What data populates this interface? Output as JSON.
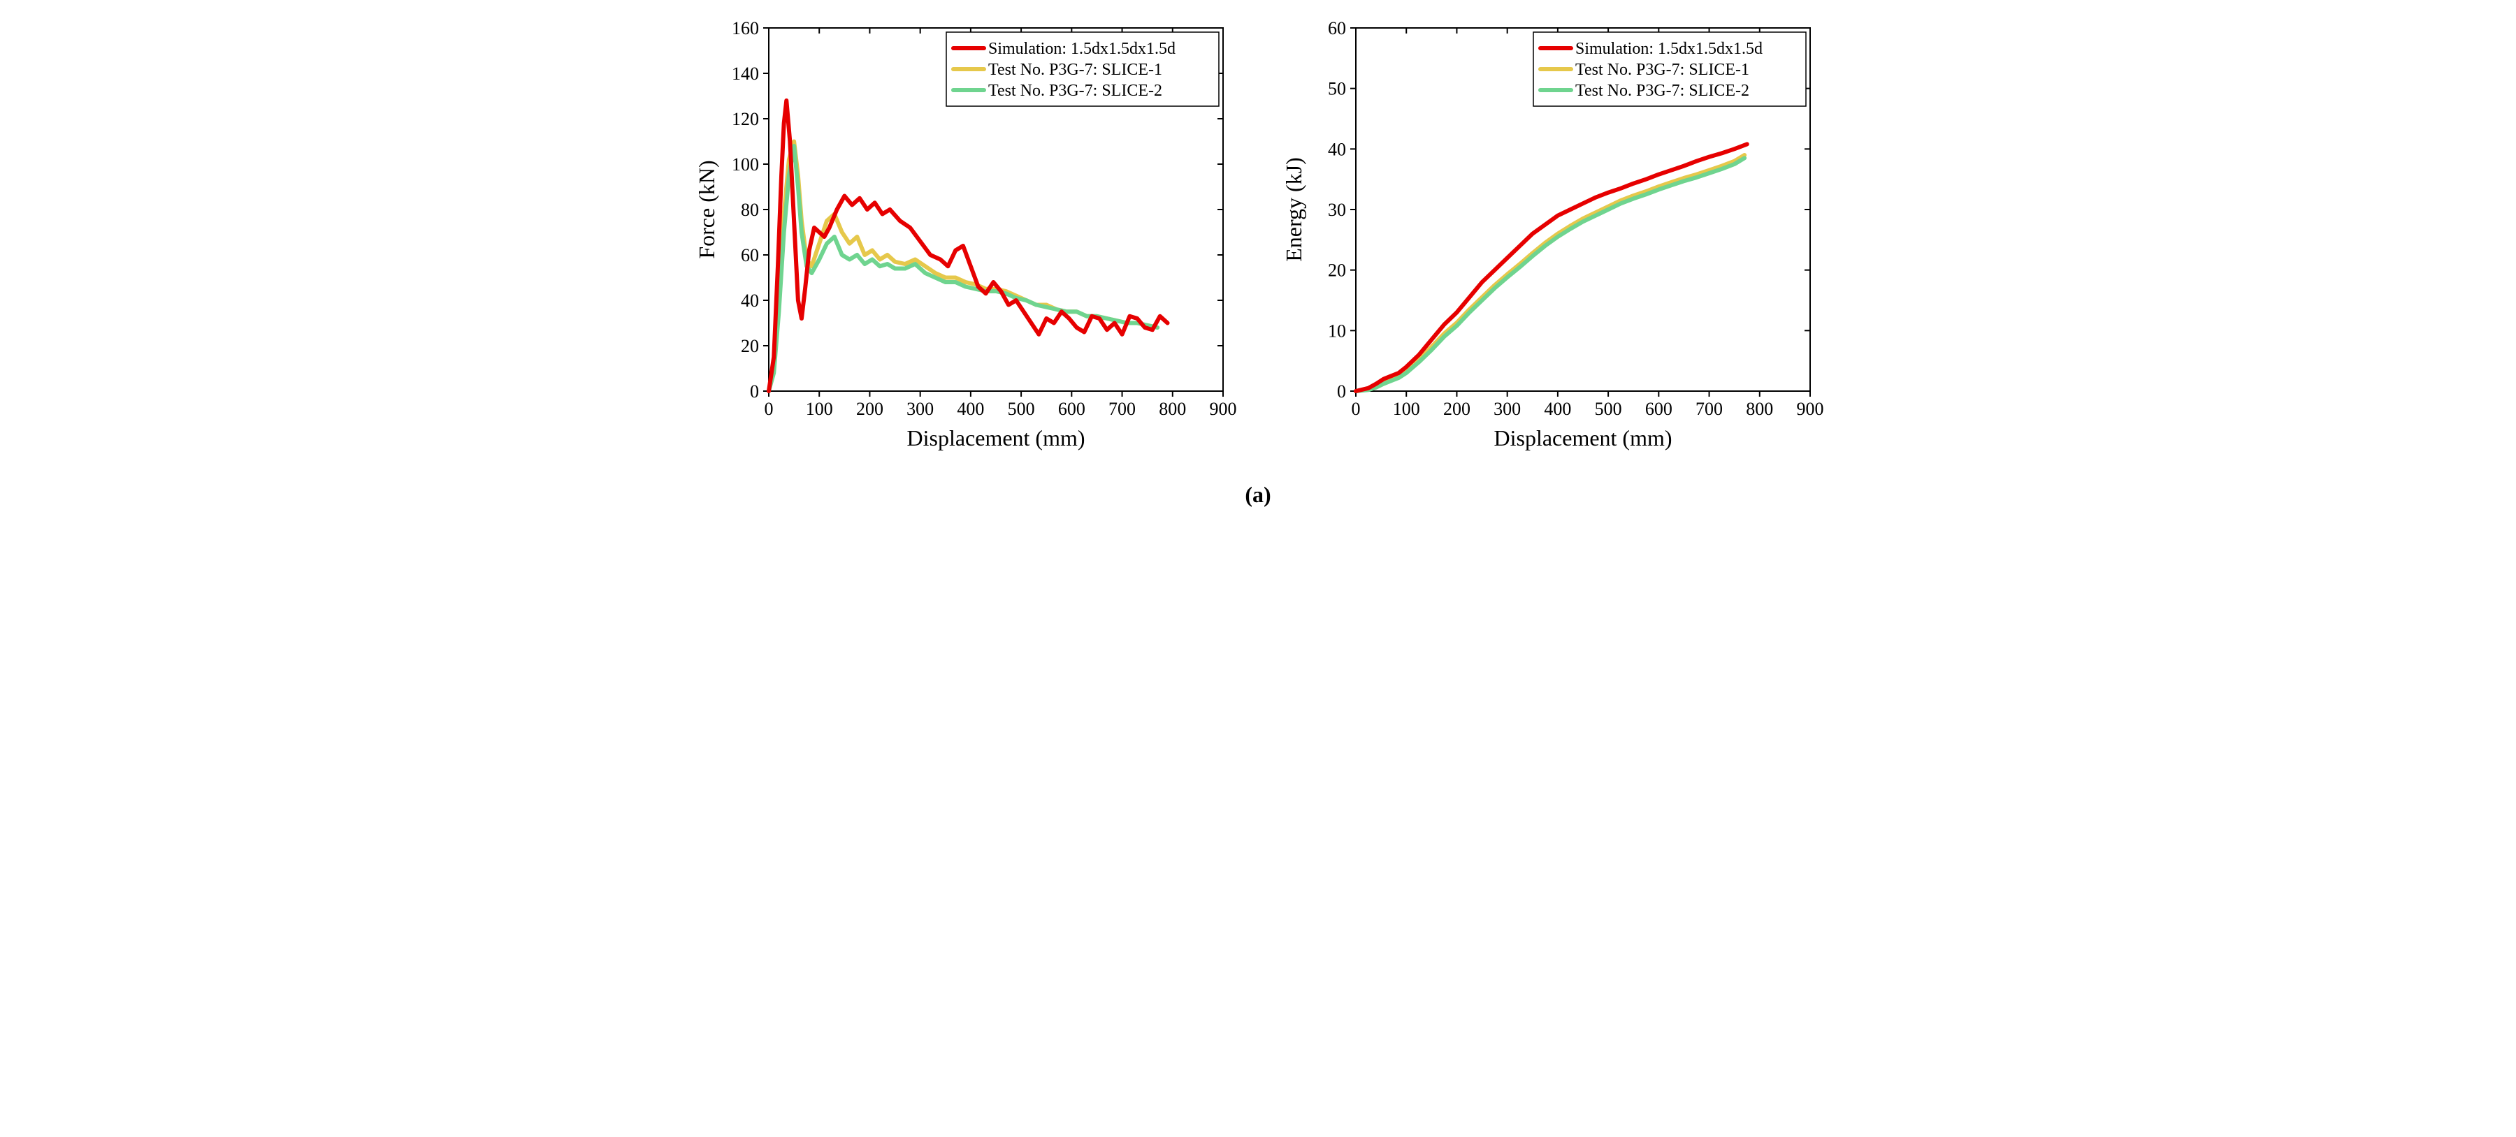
{
  "subfig_label": "(a)",
  "background_color": "#ffffff",
  "grid_color": "#000000",
  "axis_color": "#000000",
  "text_color": "#000000",
  "series_colors": {
    "simulation": "#e60000",
    "slice1": "#e6c84b",
    "slice2": "#6fd48f"
  },
  "line_width": 6,
  "legend": {
    "items": [
      {
        "key": "simulation",
        "label": "Simulation: 1.5dx1.5dx1.5d"
      },
      {
        "key": "slice1",
        "label": "Test No. P3G-7: SLICE-1"
      },
      {
        "key": "slice2",
        "label": "Test No. P3G-7: SLICE-2"
      }
    ],
    "fontsize": 24,
    "box_border": "#000000"
  },
  "force_chart": {
    "xlabel": "Displacement (mm)",
    "ylabel": "Force (kN)",
    "label_fontsize": 32,
    "tick_fontsize": 26,
    "xlim": [
      0,
      900
    ],
    "ylim": [
      0,
      160
    ],
    "xticks": [
      0,
      100,
      200,
      300,
      400,
      500,
      600,
      700,
      800,
      900
    ],
    "yticks": [
      0,
      20,
      40,
      60,
      80,
      100,
      120,
      140,
      160
    ],
    "series": {
      "simulation": [
        [
          0,
          0
        ],
        [
          10,
          15
        ],
        [
          18,
          55
        ],
        [
          25,
          95
        ],
        [
          30,
          118
        ],
        [
          35,
          128
        ],
        [
          42,
          110
        ],
        [
          50,
          75
        ],
        [
          58,
          40
        ],
        [
          65,
          32
        ],
        [
          72,
          45
        ],
        [
          80,
          62
        ],
        [
          90,
          72
        ],
        [
          100,
          70
        ],
        [
          110,
          68
        ],
        [
          120,
          72
        ],
        [
          135,
          80
        ],
        [
          150,
          86
        ],
        [
          165,
          82
        ],
        [
          180,
          85
        ],
        [
          195,
          80
        ],
        [
          210,
          83
        ],
        [
          225,
          78
        ],
        [
          240,
          80
        ],
        [
          260,
          75
        ],
        [
          280,
          72
        ],
        [
          300,
          66
        ],
        [
          320,
          60
        ],
        [
          340,
          58
        ],
        [
          355,
          55
        ],
        [
          370,
          62
        ],
        [
          385,
          64
        ],
        [
          400,
          55
        ],
        [
          415,
          46
        ],
        [
          430,
          43
        ],
        [
          445,
          48
        ],
        [
          460,
          44
        ],
        [
          475,
          38
        ],
        [
          490,
          40
        ],
        [
          505,
          35
        ],
        [
          520,
          30
        ],
        [
          535,
          25
        ],
        [
          550,
          32
        ],
        [
          565,
          30
        ],
        [
          580,
          35
        ],
        [
          595,
          32
        ],
        [
          610,
          28
        ],
        [
          625,
          26
        ],
        [
          640,
          33
        ],
        [
          655,
          32
        ],
        [
          670,
          27
        ],
        [
          685,
          30
        ],
        [
          700,
          25
        ],
        [
          715,
          33
        ],
        [
          730,
          32
        ],
        [
          745,
          28
        ],
        [
          760,
          27
        ],
        [
          775,
          33
        ],
        [
          790,
          30
        ]
      ],
      "slice1": [
        [
          0,
          0
        ],
        [
          10,
          10
        ],
        [
          20,
          40
        ],
        [
          30,
          78
        ],
        [
          40,
          102
        ],
        [
          50,
          110
        ],
        [
          58,
          95
        ],
        [
          65,
          75
        ],
        [
          75,
          58
        ],
        [
          85,
          55
        ],
        [
          100,
          65
        ],
        [
          115,
          75
        ],
        [
          130,
          78
        ],
        [
          145,
          70
        ],
        [
          160,
          65
        ],
        [
          175,
          68
        ],
        [
          190,
          60
        ],
        [
          205,
          62
        ],
        [
          220,
          58
        ],
        [
          235,
          60
        ],
        [
          250,
          57
        ],
        [
          270,
          56
        ],
        [
          290,
          58
        ],
        [
          310,
          55
        ],
        [
          330,
          52
        ],
        [
          350,
          50
        ],
        [
          370,
          50
        ],
        [
          390,
          48
        ],
        [
          410,
          47
        ],
        [
          430,
          45
        ],
        [
          450,
          45
        ],
        [
          470,
          44
        ],
        [
          490,
          42
        ],
        [
          510,
          40
        ],
        [
          530,
          38
        ],
        [
          550,
          38
        ],
        [
          570,
          36
        ],
        [
          590,
          35
        ],
        [
          610,
          35
        ],
        [
          630,
          33
        ],
        [
          650,
          33
        ],
        [
          670,
          32
        ],
        [
          690,
          31
        ],
        [
          710,
          30
        ],
        [
          730,
          30
        ],
        [
          750,
          29
        ],
        [
          770,
          28
        ]
      ],
      "slice2": [
        [
          0,
          0
        ],
        [
          10,
          8
        ],
        [
          20,
          35
        ],
        [
          30,
          70
        ],
        [
          40,
          95
        ],
        [
          50,
          108
        ],
        [
          58,
          90
        ],
        [
          65,
          70
        ],
        [
          75,
          55
        ],
        [
          85,
          52
        ],
        [
          100,
          58
        ],
        [
          115,
          65
        ],
        [
          130,
          68
        ],
        [
          145,
          60
        ],
        [
          160,
          58
        ],
        [
          175,
          60
        ],
        [
          190,
          56
        ],
        [
          205,
          58
        ],
        [
          220,
          55
        ],
        [
          235,
          56
        ],
        [
          250,
          54
        ],
        [
          270,
          54
        ],
        [
          290,
          56
        ],
        [
          310,
          52
        ],
        [
          330,
          50
        ],
        [
          350,
          48
        ],
        [
          370,
          48
        ],
        [
          390,
          46
        ],
        [
          410,
          45
        ],
        [
          430,
          44
        ],
        [
          450,
          44
        ],
        [
          470,
          43
        ],
        [
          490,
          41
        ],
        [
          510,
          40
        ],
        [
          530,
          38
        ],
        [
          550,
          37
        ],
        [
          570,
          36
        ],
        [
          590,
          35
        ],
        [
          610,
          35
        ],
        [
          630,
          33
        ],
        [
          650,
          33
        ],
        [
          670,
          32
        ],
        [
          690,
          31
        ],
        [
          710,
          30
        ],
        [
          730,
          30
        ],
        [
          750,
          29
        ],
        [
          770,
          28
        ]
      ]
    }
  },
  "energy_chart": {
    "xlabel": "Displacement (mm)",
    "ylabel": "Energy (kJ)",
    "label_fontsize": 32,
    "tick_fontsize": 26,
    "xlim": [
      0,
      900
    ],
    "ylim": [
      0,
      60
    ],
    "xticks": [
      0,
      100,
      200,
      300,
      400,
      500,
      600,
      700,
      800,
      900
    ],
    "yticks": [
      0,
      10,
      20,
      30,
      40,
      50,
      60
    ],
    "series": {
      "simulation": [
        [
          0,
          0
        ],
        [
          25,
          0.5
        ],
        [
          40,
          1.2
        ],
        [
          55,
          2
        ],
        [
          70,
          2.5
        ],
        [
          85,
          3
        ],
        [
          100,
          4
        ],
        [
          125,
          6
        ],
        [
          150,
          8.5
        ],
        [
          175,
          11
        ],
        [
          200,
          13
        ],
        [
          225,
          15.5
        ],
        [
          250,
          18
        ],
        [
          275,
          20
        ],
        [
          300,
          22
        ],
        [
          325,
          24
        ],
        [
          350,
          26
        ],
        [
          375,
          27.5
        ],
        [
          400,
          29
        ],
        [
          425,
          30
        ],
        [
          450,
          31
        ],
        [
          475,
          32
        ],
        [
          500,
          32.8
        ],
        [
          525,
          33.5
        ],
        [
          550,
          34.3
        ],
        [
          575,
          35
        ],
        [
          600,
          35.8
        ],
        [
          625,
          36.5
        ],
        [
          650,
          37.2
        ],
        [
          675,
          38
        ],
        [
          700,
          38.7
        ],
        [
          725,
          39.3
        ],
        [
          750,
          40
        ],
        [
          775,
          40.8
        ]
      ],
      "slice1": [
        [
          0,
          0
        ],
        [
          25,
          0.3
        ],
        [
          40,
          0.8
        ],
        [
          55,
          1.5
        ],
        [
          70,
          2
        ],
        [
          85,
          2.5
        ],
        [
          100,
          3.4
        ],
        [
          125,
          5.2
        ],
        [
          150,
          7.3
        ],
        [
          175,
          9.5
        ],
        [
          200,
          11.3
        ],
        [
          225,
          13.5
        ],
        [
          250,
          15.5
        ],
        [
          275,
          17.5
        ],
        [
          300,
          19.3
        ],
        [
          325,
          21
        ],
        [
          350,
          22.8
        ],
        [
          375,
          24.5
        ],
        [
          400,
          26
        ],
        [
          425,
          27.3
        ],
        [
          450,
          28.5
        ],
        [
          475,
          29.5
        ],
        [
          500,
          30.5
        ],
        [
          525,
          31.5
        ],
        [
          550,
          32.3
        ],
        [
          575,
          33
        ],
        [
          600,
          33.8
        ],
        [
          625,
          34.5
        ],
        [
          650,
          35.2
        ],
        [
          675,
          35.8
        ],
        [
          700,
          36.5
        ],
        [
          725,
          37.2
        ],
        [
          750,
          38
        ],
        [
          770,
          39
        ]
      ],
      "slice2": [
        [
          0,
          0
        ],
        [
          25,
          0.2
        ],
        [
          40,
          0.6
        ],
        [
          55,
          1.2
        ],
        [
          70,
          1.7
        ],
        [
          85,
          2.2
        ],
        [
          100,
          3
        ],
        [
          125,
          4.8
        ],
        [
          150,
          6.8
        ],
        [
          175,
          9
        ],
        [
          200,
          10.8
        ],
        [
          225,
          13
        ],
        [
          250,
          15
        ],
        [
          275,
          17
        ],
        [
          300,
          18.8
        ],
        [
          325,
          20.5
        ],
        [
          350,
          22.3
        ],
        [
          375,
          24
        ],
        [
          400,
          25.5
        ],
        [
          425,
          26.8
        ],
        [
          450,
          28
        ],
        [
          475,
          29
        ],
        [
          500,
          30
        ],
        [
          525,
          31
        ],
        [
          550,
          31.8
        ],
        [
          575,
          32.5
        ],
        [
          600,
          33.3
        ],
        [
          625,
          34
        ],
        [
          650,
          34.7
        ],
        [
          675,
          35.3
        ],
        [
          700,
          36
        ],
        [
          725,
          36.7
        ],
        [
          750,
          37.5
        ],
        [
          770,
          38.5
        ]
      ]
    }
  }
}
